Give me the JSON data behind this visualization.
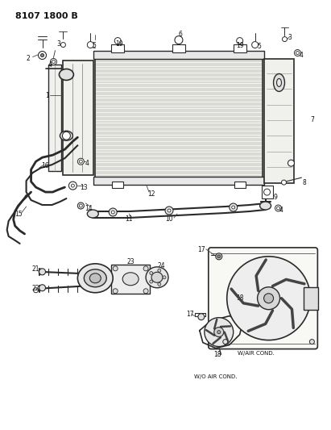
{
  "title": "8107 1800 B",
  "bg_color": "#ffffff",
  "lc": "#2a2a2a",
  "tc": "#111111",
  "fig_width": 4.11,
  "fig_height": 5.33,
  "dpi": 100
}
